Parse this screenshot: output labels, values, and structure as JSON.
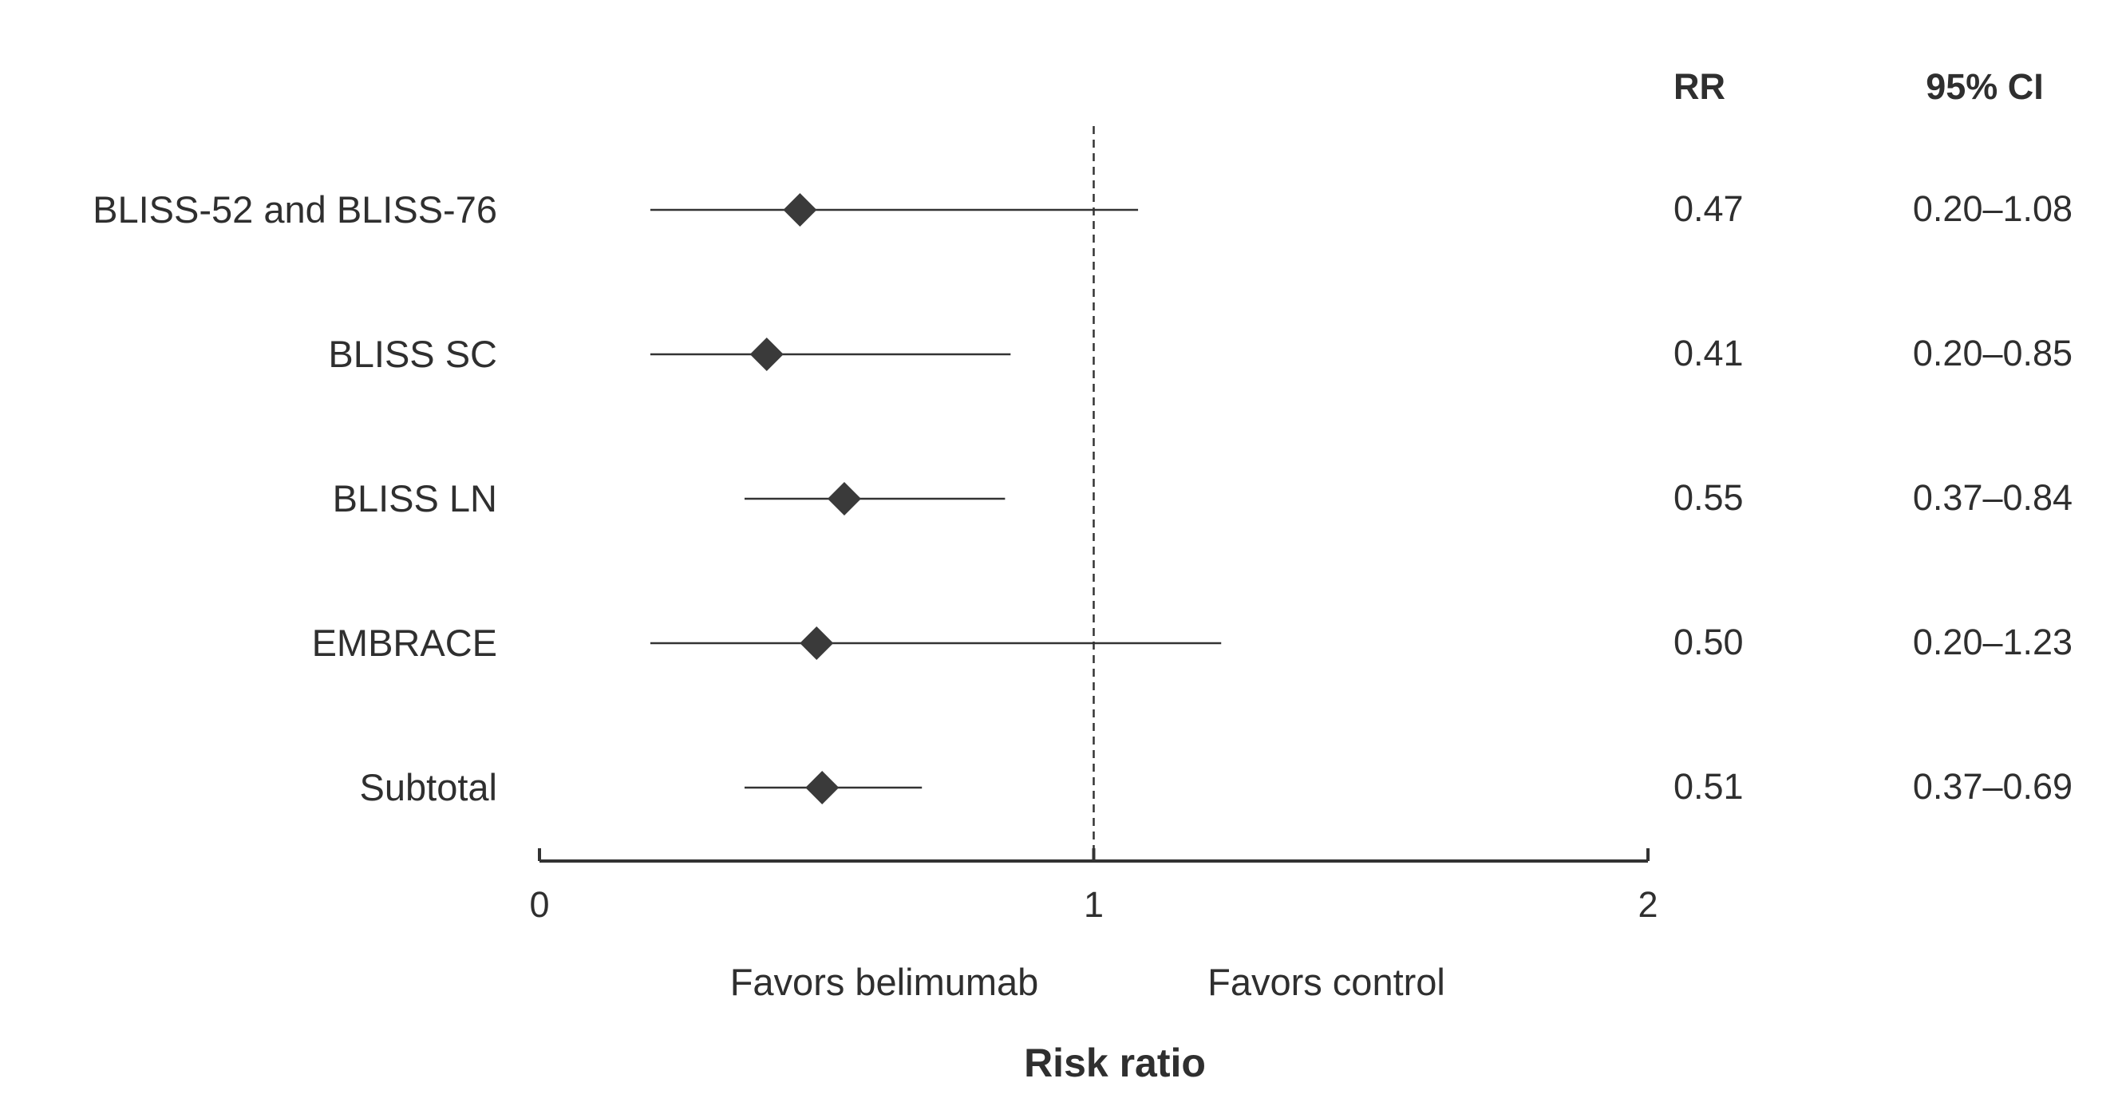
{
  "chart_data": {
    "type": "forest",
    "xlabel": "Risk ratio",
    "xlim": [
      0,
      2
    ],
    "x_ticks": [
      "0",
      "1",
      "2"
    ],
    "reference_line": 1,
    "favors_left": "Favors belimumab",
    "favors_right": "Favors control",
    "column_headers": {
      "rr": "RR",
      "ci": "95% CI"
    },
    "rows": [
      {
        "label": "BLISS-52 and BLISS-76",
        "rr": 0.47,
        "lower": 0.2,
        "upper": 1.08,
        "rr_text": "0.47",
        "ci_text": "0.20–1.08"
      },
      {
        "label": "BLISS SC",
        "rr": 0.41,
        "lower": 0.2,
        "upper": 0.85,
        "rr_text": "0.41",
        "ci_text": "0.20–0.85"
      },
      {
        "label": "BLISS LN",
        "rr": 0.55,
        "lower": 0.37,
        "upper": 0.84,
        "rr_text": "0.55",
        "ci_text": "0.37–0.84"
      },
      {
        "label": "EMBRACE",
        "rr": 0.5,
        "lower": 0.2,
        "upper": 1.23,
        "rr_text": "0.50",
        "ci_text": "0.20–1.23"
      },
      {
        "label": "Subtotal",
        "rr": 0.51,
        "lower": 0.37,
        "upper": 0.69,
        "rr_text": "0.51",
        "ci_text": "0.37–0.69"
      }
    ],
    "colors": {
      "ink": "#333333",
      "marker": "#3a3a3a"
    }
  }
}
